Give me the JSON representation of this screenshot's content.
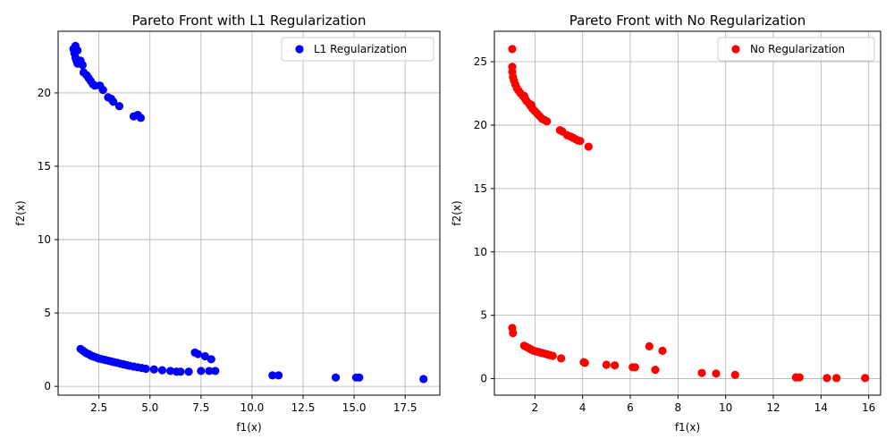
{
  "chart_data": [
    {
      "type": "scatter",
      "title": "Pareto Front with L1 Regularization",
      "xlabel": "f1(x)",
      "ylabel": "f2(x)",
      "xlim": [
        0.5,
        19.2
      ],
      "ylim": [
        -0.6,
        24.2
      ],
      "xticks": [
        2.5,
        5.0,
        7.5,
        10.0,
        12.5,
        15.0,
        17.5
      ],
      "xtick_labels": [
        "2.5",
        "5.0",
        "7.5",
        "10.0",
        "12.5",
        "15.0",
        "17.5"
      ],
      "yticks": [
        0,
        5,
        10,
        15,
        20
      ],
      "ytick_labels": [
        "0",
        "5",
        "10",
        "15",
        "20"
      ],
      "grid": true,
      "legend": "upper right",
      "series": [
        {
          "name": "L1 Regularization",
          "color": "#0000ff",
          "points": [
            [
              1.25,
              23.0
            ],
            [
              1.3,
              22.7
            ],
            [
              1.35,
              22.4
            ],
            [
              1.4,
              22.2
            ],
            [
              1.45,
              22.0
            ],
            [
              1.35,
              23.2
            ],
            [
              1.45,
              22.9
            ],
            [
              1.6,
              22.2
            ],
            [
              1.7,
              21.9
            ],
            [
              1.75,
              21.4
            ],
            [
              1.9,
              21.2
            ],
            [
              2.0,
              21.0
            ],
            [
              2.1,
              20.8
            ],
            [
              2.2,
              20.6
            ],
            [
              2.3,
              20.5
            ],
            [
              2.55,
              20.5
            ],
            [
              2.7,
              20.2
            ],
            [
              2.95,
              19.7
            ],
            [
              3.1,
              19.6
            ],
            [
              3.2,
              19.4
            ],
            [
              3.5,
              19.1
            ],
            [
              4.2,
              18.4
            ],
            [
              4.4,
              18.5
            ],
            [
              4.55,
              18.3
            ],
            [
              1.6,
              2.55
            ],
            [
              1.7,
              2.45
            ],
            [
              1.8,
              2.35
            ],
            [
              1.9,
              2.25
            ],
            [
              2.0,
              2.2
            ],
            [
              2.1,
              2.1
            ],
            [
              2.2,
              2.05
            ],
            [
              2.3,
              2.0
            ],
            [
              2.4,
              1.95
            ],
            [
              2.5,
              1.9
            ],
            [
              2.65,
              1.85
            ],
            [
              2.8,
              1.8
            ],
            [
              2.95,
              1.75
            ],
            [
              3.1,
              1.7
            ],
            [
              3.25,
              1.65
            ],
            [
              3.4,
              1.6
            ],
            [
              3.55,
              1.55
            ],
            [
              3.7,
              1.5
            ],
            [
              3.85,
              1.45
            ],
            [
              4.0,
              1.4
            ],
            [
              4.2,
              1.35
            ],
            [
              4.4,
              1.3
            ],
            [
              4.6,
              1.25
            ],
            [
              4.8,
              1.2
            ],
            [
              5.2,
              1.15
            ],
            [
              5.6,
              1.1
            ],
            [
              6.0,
              1.05
            ],
            [
              6.3,
              1.0
            ],
            [
              6.5,
              1.0
            ],
            [
              6.9,
              1.0
            ],
            [
              7.5,
              1.05
            ],
            [
              7.9,
              1.05
            ],
            [
              8.2,
              1.05
            ],
            [
              7.2,
              2.3
            ],
            [
              7.35,
              2.2
            ],
            [
              7.7,
              2.05
            ],
            [
              8.0,
              1.85
            ],
            [
              11.0,
              0.75
            ],
            [
              11.3,
              0.75
            ],
            [
              14.1,
              0.6
            ],
            [
              15.1,
              0.6
            ],
            [
              15.25,
              0.6
            ],
            [
              18.4,
              0.5
            ]
          ]
        }
      ]
    },
    {
      "type": "scatter",
      "title": "Pareto Front with No Regularization",
      "xlabel": "f1(x)",
      "ylabel": "f2(x)",
      "xlim": [
        0.3,
        16.5
      ],
      "ylim": [
        -1.3,
        27.4
      ],
      "xticks": [
        2,
        4,
        6,
        8,
        10,
        12,
        14,
        16
      ],
      "xtick_labels": [
        "2",
        "4",
        "6",
        "8",
        "10",
        "12",
        "14",
        "16"
      ],
      "yticks": [
        0,
        5,
        10,
        15,
        20,
        25
      ],
      "ytick_labels": [
        "0",
        "5",
        "10",
        "15",
        "20",
        "25"
      ],
      "grid": true,
      "legend": "upper right",
      "series": [
        {
          "name": "No Regularization",
          "color": "#ff0000",
          "points": [
            [
              1.05,
              26.0
            ],
            [
              1.05,
              24.6
            ],
            [
              1.05,
              24.2
            ],
            [
              1.08,
              23.8
            ],
            [
              1.12,
              23.5
            ],
            [
              1.18,
              23.2
            ],
            [
              1.25,
              22.9
            ],
            [
              1.32,
              22.7
            ],
            [
              1.4,
              22.5
            ],
            [
              1.5,
              22.3
            ],
            [
              1.58,
              22.1
            ],
            [
              1.55,
              22.3
            ],
            [
              1.65,
              21.9
            ],
            [
              1.75,
              21.7
            ],
            [
              1.82,
              21.5
            ],
            [
              1.9,
              21.3
            ],
            [
              1.85,
              21.6
            ],
            [
              2.0,
              21.1
            ],
            [
              2.1,
              20.9
            ],
            [
              2.2,
              20.7
            ],
            [
              2.3,
              20.5
            ],
            [
              2.4,
              20.4
            ],
            [
              2.5,
              20.3
            ],
            [
              3.05,
              19.6
            ],
            [
              3.15,
              19.5
            ],
            [
              3.35,
              19.2
            ],
            [
              3.5,
              19.1
            ],
            [
              3.6,
              19.0
            ],
            [
              3.7,
              18.9
            ],
            [
              3.8,
              18.8
            ],
            [
              3.9,
              18.75
            ],
            [
              4.25,
              18.3
            ],
            [
              1.05,
              4.0
            ],
            [
              1.08,
              3.6
            ],
            [
              1.55,
              2.6
            ],
            [
              1.65,
              2.5
            ],
            [
              1.75,
              2.4
            ],
            [
              1.85,
              2.3
            ],
            [
              1.95,
              2.2
            ],
            [
              2.05,
              2.15
            ],
            [
              2.15,
              2.1
            ],
            [
              2.25,
              2.05
            ],
            [
              2.35,
              2.0
            ],
            [
              2.45,
              1.95
            ],
            [
              2.55,
              1.9
            ],
            [
              2.65,
              1.85
            ],
            [
              2.75,
              1.8
            ],
            [
              3.1,
              1.6
            ],
            [
              4.05,
              1.3
            ],
            [
              4.1,
              1.25
            ],
            [
              5.0,
              1.1
            ],
            [
              5.35,
              1.05
            ],
            [
              6.1,
              0.9
            ],
            [
              6.2,
              0.9
            ],
            [
              7.05,
              0.7
            ],
            [
              6.8,
              2.55
            ],
            [
              7.35,
              2.2
            ],
            [
              9.0,
              0.45
            ],
            [
              9.6,
              0.4
            ],
            [
              10.4,
              0.3
            ],
            [
              12.95,
              0.1
            ],
            [
              13.1,
              0.1
            ],
            [
              14.25,
              0.05
            ],
            [
              14.65,
              0.05
            ],
            [
              15.85,
              0.05
            ]
          ]
        }
      ]
    }
  ]
}
